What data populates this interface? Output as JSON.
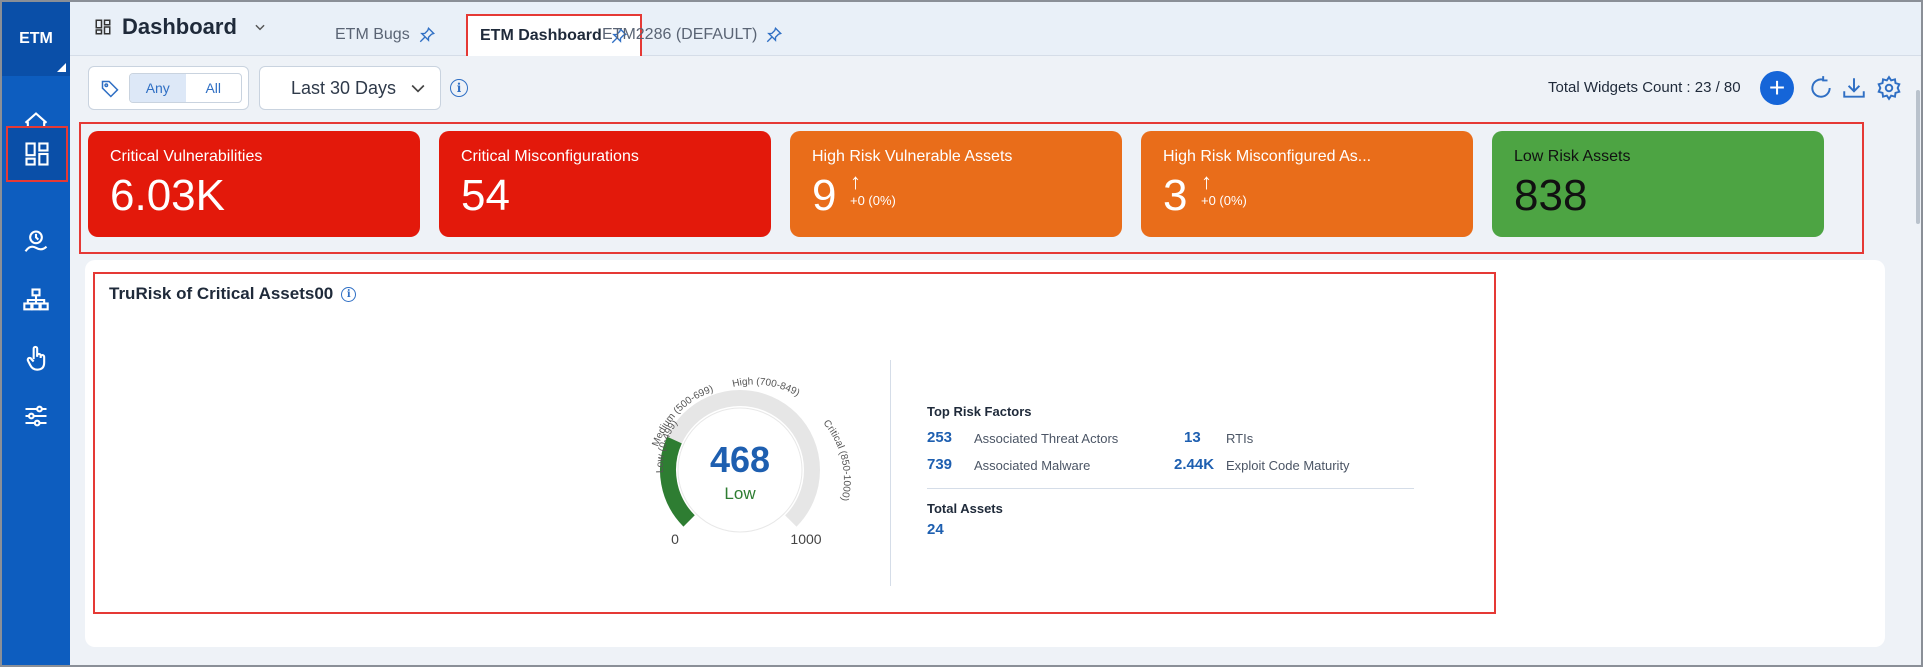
{
  "sidebar": {
    "logo": "ETM",
    "items": [
      {
        "name": "home-icon"
      },
      {
        "name": "dashboard-icon"
      },
      {
        "name": "risk-icon"
      },
      {
        "name": "hierarchy-icon"
      },
      {
        "name": "touch-icon"
      },
      {
        "name": "sliders-icon"
      }
    ]
  },
  "header": {
    "title": "Dashboard",
    "tabs": [
      {
        "label": "ETM Bugs"
      },
      {
        "label": "ETM Dashboard"
      },
      {
        "label": "ETM2286 (DEFAULT)"
      }
    ]
  },
  "filters": {
    "match_any": "Any",
    "match_all": "All",
    "date_range": "Last 30 Days"
  },
  "toolbar": {
    "widgets_count": "Total Widgets Count : 23 / 80",
    "add_label": "+"
  },
  "kpis": [
    {
      "label": "Critical Vulnerabilities",
      "value": "6.03K"
    },
    {
      "label": "Critical Misconfigurations",
      "value": "54"
    },
    {
      "label": "High Risk Vulnerable Assets",
      "value": "9",
      "trend": "+0 (0%)"
    },
    {
      "label": "High Risk Misconfigured As...",
      "value": "3",
      "trend": "+0 (0%)"
    },
    {
      "label": "Low Risk Assets",
      "value": "838"
    }
  ],
  "trurisk": {
    "title": "TruRisk of Critical Assets00",
    "score": "468",
    "level": "Low",
    "score_fraction": 0.468,
    "min_label": "0",
    "max_label": "1000",
    "bands": [
      "Low (0-499)",
      "Medium (500-699)",
      "High (700-849)",
      "Critical (850-1000)"
    ],
    "top_risk_factors_title": "Top Risk Factors",
    "factors": [
      {
        "value": "253",
        "label": "Associated Threat Actors"
      },
      {
        "value": "13",
        "label": "RTIs"
      },
      {
        "value": "739",
        "label": "Associated Malware"
      },
      {
        "value": "2.44K",
        "label": "Exploit Code Maturity"
      }
    ],
    "total_assets_title": "Total Assets",
    "total_assets": "24"
  },
  "colors": {
    "sidebar": "#0d5dbf",
    "critical": "#e3190b",
    "high": "#e96d1a",
    "low": "#4da443",
    "accent": "#1565d8"
  }
}
